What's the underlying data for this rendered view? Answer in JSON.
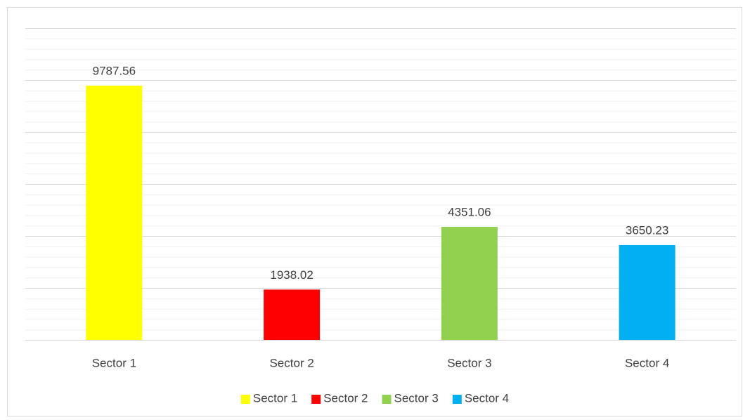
{
  "chart_data": {
    "type": "bar",
    "categories": [
      "Sector 1",
      "Sector 2",
      "Sector 3",
      "Sector 4"
    ],
    "values": [
      9787.56,
      1938.02,
      4351.06,
      3650.23
    ],
    "colors": [
      "#ffff00",
      "#ff0000",
      "#92d050",
      "#00b0f0"
    ],
    "ylim": [
      0,
      12000
    ],
    "yticks": [
      0,
      2000,
      4000,
      6000,
      8000,
      10000,
      12000
    ],
    "minor_yticks": [
      400,
      800,
      1200,
      1600,
      2400,
      2800,
      3200,
      3600,
      4400,
      4800,
      5200,
      5600,
      6400,
      6800,
      7200,
      7600,
      8400,
      8800,
      9200,
      9600,
      10400,
      10800,
      11200,
      11600
    ],
    "grid": true,
    "legend": "bottom"
  }
}
